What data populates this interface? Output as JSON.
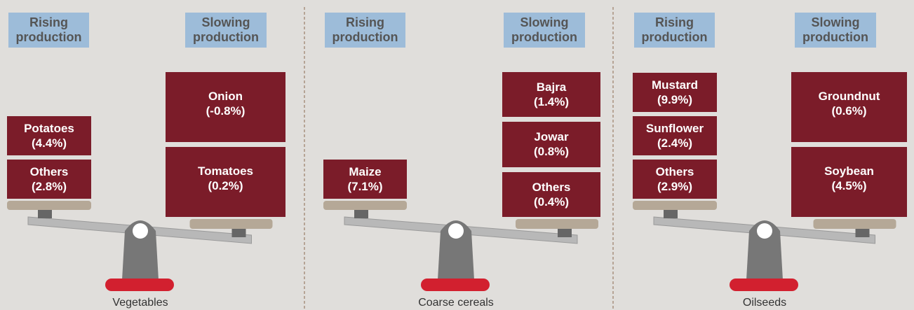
{
  "panels": [
    {
      "title": "Vegetables",
      "rising_header": "Rising production",
      "slowing_header": "Slowing production",
      "rising": [
        {
          "name": "Potatoes",
          "label": "(4.4%)"
        },
        {
          "name": "Others",
          "label": "(2.8%)"
        }
      ],
      "slowing": [
        {
          "name": "Onion",
          "label": "(-0.8%)"
        },
        {
          "name": "Tomatoes",
          "label": "(0.2%)"
        }
      ]
    },
    {
      "title": "Coarse cereals",
      "rising_header": "Rising production",
      "slowing_header": "Slowing production",
      "rising": [
        {
          "name": "Maize",
          "label": "(7.1%)"
        }
      ],
      "slowing": [
        {
          "name": "Bajra",
          "label": "(1.4%)"
        },
        {
          "name": "Jowar",
          "label": "(0.8%)"
        },
        {
          "name": "Others",
          "label": "(0.4%)"
        }
      ]
    },
    {
      "title": "Oilseeds",
      "rising_header": "Rising production",
      "slowing_header": "Slowing production",
      "rising": [
        {
          "name": "Mustard",
          "label": "(9.9%)"
        },
        {
          "name": "Sunflower",
          "label": "(2.4%)"
        },
        {
          "name": "Others",
          "label": "(2.9%)"
        }
      ],
      "slowing": [
        {
          "name": "Groundnut",
          "label": "(0.6%)"
        },
        {
          "name": "Soybean",
          "label": "(4.5%)"
        }
      ]
    }
  ]
}
